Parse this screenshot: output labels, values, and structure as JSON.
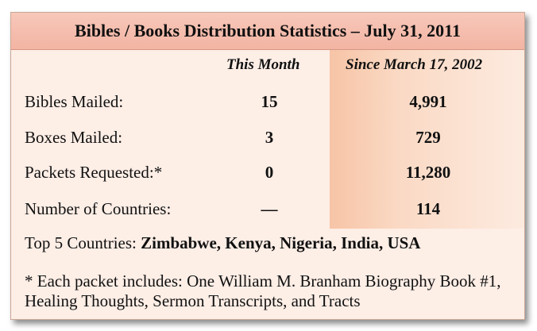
{
  "title": "Bibles / Books Distribution Statistics – July 31, 2011",
  "columns": {
    "this_month": "This Month",
    "since": "Since March 17, 2002"
  },
  "rows": [
    {
      "label": "Bibles Mailed:",
      "this_month": "15",
      "since": "4,991"
    },
    {
      "label": "Boxes Mailed:",
      "this_month": "3",
      "since": "729"
    },
    {
      "label": "Packets Requested:*",
      "this_month": "0",
      "since": "11,280"
    },
    {
      "label": "Number of Countries:",
      "this_month": "—",
      "since": "114"
    }
  ],
  "top5": {
    "label": "Top 5 Countries:",
    "countries": "Zimbabwe, Kenya, Nigeria, India, USA"
  },
  "footnote": "* Each packet includes: One William M. Branham Biography Book #1, Healing Thoughts, Sermon Transcripts,  and Tracts",
  "colors": {
    "title_bar": "#f3b4a3",
    "card_background": "#fdeee6",
    "highlight_column": "#f7c4a6"
  }
}
